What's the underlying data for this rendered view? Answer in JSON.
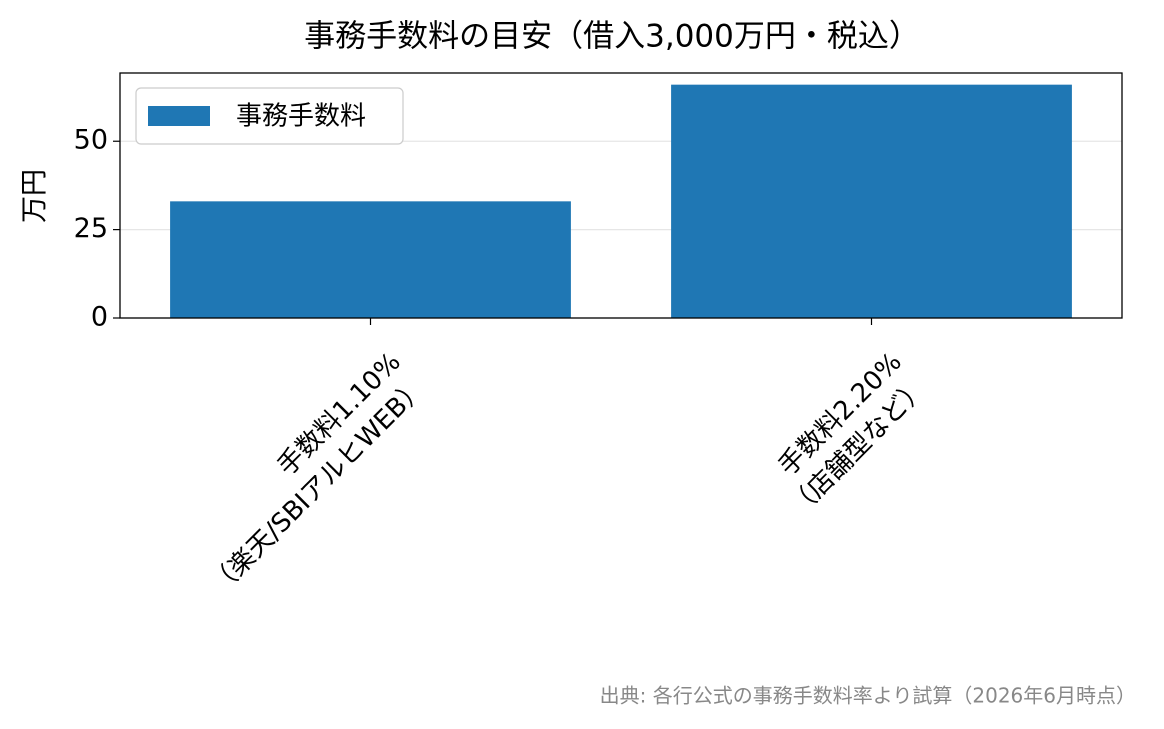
{
  "chart_data": {
    "type": "bar",
    "title": "事務手数料の目安（借入3,000万円・税込）",
    "categories": [
      [
        "手数料1.10%",
        "（楽天/SBIアルヒWEB）"
      ],
      [
        "手数料2.20%",
        "（店舗型など）"
      ]
    ],
    "series": [
      {
        "name": "事務手数料",
        "color": "#1f77b4",
        "values": [
          33,
          66
        ]
      }
    ],
    "y_label": "万円",
    "ylim": [
      0,
      69.3
    ],
    "yticks": [
      0,
      25,
      50
    ],
    "grid": true,
    "legend": "upper-left",
    "source": "出典: 各行公式の事務手数料率より試算（2026年6月時点）"
  }
}
